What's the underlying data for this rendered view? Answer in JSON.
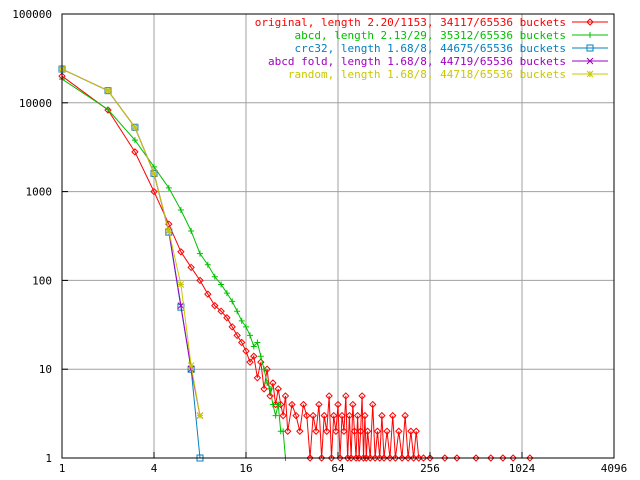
{
  "chart_data": {
    "type": "line",
    "x_scale": "log2",
    "y_scale": "log10",
    "xlim": [
      1,
      4096
    ],
    "ylim": [
      1,
      100000
    ],
    "x_ticks": [
      "1",
      "4",
      "16",
      "64",
      "256",
      "1024",
      "4096"
    ],
    "y_ticks": [
      "1",
      "10",
      "100",
      "1000",
      "10000",
      "100000"
    ],
    "grid": true,
    "legend_position": "top-right",
    "series": [
      {
        "name": "original, length 2.20/1153, 34117/65536 buckets",
        "color": "#ff0000",
        "marker": "diamond",
        "points": [
          [
            1,
            20000
          ],
          [
            2,
            8300
          ],
          [
            3,
            2800
          ],
          [
            4,
            1000
          ],
          [
            5,
            430
          ],
          [
            6,
            210
          ],
          [
            7,
            140
          ],
          [
            8,
            100
          ],
          [
            9,
            70
          ],
          [
            10,
            52
          ],
          [
            11,
            45
          ],
          [
            12,
            38
          ],
          [
            13,
            30
          ],
          [
            14,
            24
          ],
          [
            15,
            20
          ],
          [
            16,
            16
          ],
          [
            17,
            12
          ],
          [
            18,
            14
          ],
          [
            19,
            8
          ],
          [
            20,
            12
          ],
          [
            21,
            6
          ],
          [
            22,
            10
          ],
          [
            23,
            5
          ],
          [
            24,
            7
          ],
          [
            25,
            4
          ],
          [
            26,
            6
          ],
          [
            27,
            4
          ],
          [
            28,
            3
          ],
          [
            29,
            5
          ],
          [
            30,
            2
          ],
          [
            32,
            4
          ],
          [
            34,
            3
          ],
          [
            36,
            2
          ],
          [
            38,
            4
          ],
          [
            40,
            3
          ],
          [
            42,
            1
          ],
          [
            44,
            3
          ],
          [
            46,
            2
          ],
          [
            48,
            4
          ],
          [
            50,
            1
          ],
          [
            52,
            3
          ],
          [
            54,
            2
          ],
          [
            56,
            5
          ],
          [
            58,
            1
          ],
          [
            60,
            3
          ],
          [
            62,
            2
          ],
          [
            64,
            4
          ],
          [
            66,
            1
          ],
          [
            68,
            3
          ],
          [
            70,
            2
          ],
          [
            72,
            5
          ],
          [
            74,
            1
          ],
          [
            76,
            3
          ],
          [
            78,
            1
          ],
          [
            80,
            4
          ],
          [
            82,
            2
          ],
          [
            84,
            1
          ],
          [
            86,
            3
          ],
          [
            88,
            1
          ],
          [
            90,
            2
          ],
          [
            92,
            5
          ],
          [
            94,
            1
          ],
          [
            96,
            3
          ],
          [
            98,
            1
          ],
          [
            100,
            2
          ],
          [
            104,
            1
          ],
          [
            108,
            4
          ],
          [
            112,
            1
          ],
          [
            116,
            2
          ],
          [
            120,
            1
          ],
          [
            124,
            3
          ],
          [
            128,
            1
          ],
          [
            134,
            2
          ],
          [
            140,
            1
          ],
          [
            146,
            3
          ],
          [
            152,
            1
          ],
          [
            160,
            2
          ],
          [
            168,
            1
          ],
          [
            176,
            3
          ],
          [
            184,
            1
          ],
          [
            192,
            2
          ],
          [
            200,
            1
          ],
          [
            208,
            2
          ],
          [
            216,
            1
          ],
          [
            232,
            1
          ],
          [
            256,
            1
          ],
          [
            320,
            1
          ],
          [
            384,
            1
          ],
          [
            512,
            1
          ],
          [
            640,
            1
          ],
          [
            768,
            1
          ],
          [
            896,
            1
          ],
          [
            1153,
            1
          ]
        ]
      },
      {
        "name": "abcd, length 2.13/29, 35312/65536 buckets",
        "color": "#00c000",
        "marker": "plus",
        "points": [
          [
            1,
            18500
          ],
          [
            2,
            8400
          ],
          [
            3,
            3800
          ],
          [
            4,
            1900
          ],
          [
            5,
            1100
          ],
          [
            6,
            620
          ],
          [
            7,
            360
          ],
          [
            8,
            200
          ],
          [
            9,
            150
          ],
          [
            10,
            110
          ],
          [
            11,
            90
          ],
          [
            12,
            72
          ],
          [
            13,
            58
          ],
          [
            14,
            45
          ],
          [
            15,
            35
          ],
          [
            16,
            30
          ],
          [
            17,
            24
          ],
          [
            18,
            18
          ],
          [
            19,
            20
          ],
          [
            20,
            14
          ],
          [
            21,
            10
          ],
          [
            22,
            7
          ],
          [
            23,
            6
          ],
          [
            24,
            4
          ],
          [
            25,
            3
          ],
          [
            26,
            4
          ],
          [
            27,
            2
          ],
          [
            28,
            2
          ],
          [
            29,
            1
          ]
        ]
      },
      {
        "name": "crc32, length 1.68/8, 44675/65536 buckets",
        "color": "#0080c0",
        "marker": "square",
        "points": [
          [
            1,
            24000
          ],
          [
            2,
            13700
          ],
          [
            3,
            5300
          ],
          [
            4,
            1600
          ],
          [
            5,
            350
          ],
          [
            6,
            50
          ],
          [
            7,
            10
          ],
          [
            8,
            1
          ]
        ]
      },
      {
        "name": "abcd fold, length 1.68/8, 44719/65536 buckets",
        "color": "#a000c0",
        "marker": "cross",
        "points": [
          [
            1,
            24000
          ],
          [
            2,
            13700
          ],
          [
            3,
            5300
          ],
          [
            4,
            1600
          ],
          [
            5,
            360
          ],
          [
            6,
            52
          ],
          [
            7,
            10
          ],
          [
            8,
            3
          ]
        ]
      },
      {
        "name": "random, length 1.68/8, 44718/65536 buckets",
        "color": "#c8c800",
        "marker": "star",
        "points": [
          [
            1,
            24000
          ],
          [
            2,
            13700
          ],
          [
            3,
            5300
          ],
          [
            4,
            1600
          ],
          [
            5,
            360
          ],
          [
            6,
            90
          ],
          [
            7,
            11
          ],
          [
            8,
            3
          ]
        ]
      }
    ]
  }
}
